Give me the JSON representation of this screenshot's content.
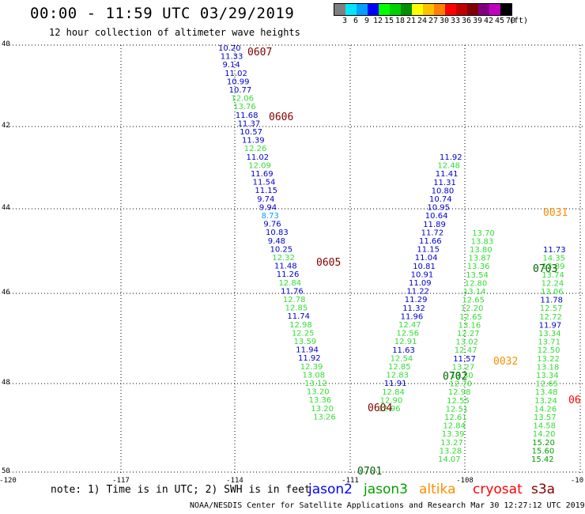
{
  "header": {
    "title": "00:00 - 11:59 UTC 03/29/2019",
    "subtitle": "12 hour collection of altimeter wave heights"
  },
  "colorbar": {
    "colors": [
      "#7f7f7f",
      "#00e5ff",
      "#00a0ff",
      "#0000ff",
      "#00ff00",
      "#00d000",
      "#009000",
      "#ffff00",
      "#ffc000",
      "#ff8000",
      "#ff0000",
      "#c00000",
      "#800000",
      "#800080",
      "#c000c0",
      "#000000"
    ],
    "labels": [
      "3",
      "6",
      "9",
      "12",
      "15",
      "18",
      "21",
      "24",
      "27",
      "30",
      "33",
      "36",
      "39",
      "42",
      "45",
      "70",
      "(ft)"
    ]
  },
  "axes": {
    "y_ticks": [
      "40",
      "42",
      "44",
      "46",
      "48",
      "50"
    ],
    "x_ticks": [
      "-120",
      "-117",
      "-114",
      "-111",
      "-108",
      "-10"
    ]
  },
  "tracks": [
    {
      "id": "t1",
      "start": [
        276,
        64
      ],
      "step": [
        2.73,
        10.6
      ],
      "lats": [],
      "vals": [
        "10.20",
        "11.33",
        "9.14",
        "11.02",
        "10.99",
        "10.77",
        "12.06",
        "13.76",
        "11.68",
        "11.37",
        "10.57",
        "11.39",
        "12.26",
        "11.02",
        "12.09",
        "11.69",
        "11.54",
        "11.15",
        "9.74",
        "9.94",
        "8.73",
        "9.76",
        "10.83",
        "9.48",
        "10.25",
        "12.32",
        "11.48",
        "11.26",
        "12.84",
        "11.76",
        "12.78",
        "12.85",
        "11.74",
        "12.98",
        "12.25",
        "13.59",
        "11.94",
        "11.92",
        "12.39",
        "13.08",
        "13.12",
        "13.20",
        "13.36",
        "13.20",
        "13.26"
      ]
    },
    {
      "id": "t2",
      "start": [
        478,
        520
      ],
      "step": [
        2.6,
        -10.6
      ],
      "vals": [
        "12.96",
        "12.90",
        "12.84",
        "11.91",
        "12.83",
        "12.85",
        "12.54",
        "11.63",
        "12.91",
        "12.56",
        "12.47",
        "11.96",
        "11.32",
        "11.29",
        "11.22",
        "11.09",
        "10.91",
        "10.81",
        "11.04",
        "11.15",
        "11.66",
        "11.72",
        "11.89",
        "10.64",
        "10.95",
        "10.74",
        "10.80",
        "11.31",
        "11.41",
        "12.48",
        "11.92"
      ]
    },
    {
      "id": "t3",
      "start": [
        554,
        584
      ],
      "step": [
        1.6,
        -10.6
      ],
      "vals": [
        "14.07",
        "13.28",
        "13.27",
        "13.39",
        "12.84",
        "12.61",
        "12.51",
        "12.55",
        "12.98",
        "12.70",
        "13.30",
        "13.27",
        "11.57",
        "12.47",
        "13.02",
        "12.27",
        "13.16",
        "12.65",
        "12.20",
        "12.65",
        "13.14",
        "12.80",
        "13.54",
        "13.36",
        "13.87",
        "13.80",
        "13.83",
        "13.70"
      ]
    },
    {
      "id": "t4",
      "start": [
        672,
        584
      ],
      "step": [
        0.6,
        -10.6
      ],
      "vals": [
        "15.42",
        "15.60",
        "15.20",
        "14.20",
        "14.58",
        "13.57",
        "14.26",
        "13.24",
        "13.48",
        "12.65",
        "13.34",
        "13.18",
        "13.22",
        "12.50",
        "13.71",
        "13.34",
        "11.97",
        "12.72",
        "12.57",
        "11.78",
        "13.06",
        "12.24",
        "13.74",
        "13.89",
        "14.35",
        "11.73"
      ]
    }
  ],
  "passes": [
    {
      "label": "0607",
      "color": "#800000"
    },
    {
      "label": "0606",
      "color": "#800000"
    },
    {
      "label": "0605",
      "color": "#800000"
    },
    {
      "label": "0604",
      "color": "#800000"
    },
    {
      "label": "0701",
      "color": "#006400"
    },
    {
      "label": "0702",
      "color": "#006400"
    },
    {
      "label": "0703",
      "color": "#006400"
    },
    {
      "label": "0031",
      "color": "#ff8c00"
    },
    {
      "label": "0032",
      "color": "#ff8c00"
    },
    {
      "label": "06",
      "color": "#ff0000"
    }
  ],
  "footer": {
    "note": "note: 1) Time is in UTC; 2) SWH is in feet",
    "legend": [
      {
        "label": "jason2",
        "color": "#0000ff"
      },
      {
        "label": "jason3",
        "color": "#00a000"
      },
      {
        "label": "altika",
        "color": "#ff8c00"
      },
      {
        "label": "cryosat",
        "color": "#ff0000"
      },
      {
        "label": "s3a",
        "color": "#800000"
      }
    ],
    "credit": "NOAA/NESDIS Center for Satellite Applications and Research    Mar 30 12:27:12 UTC 2019"
  }
}
